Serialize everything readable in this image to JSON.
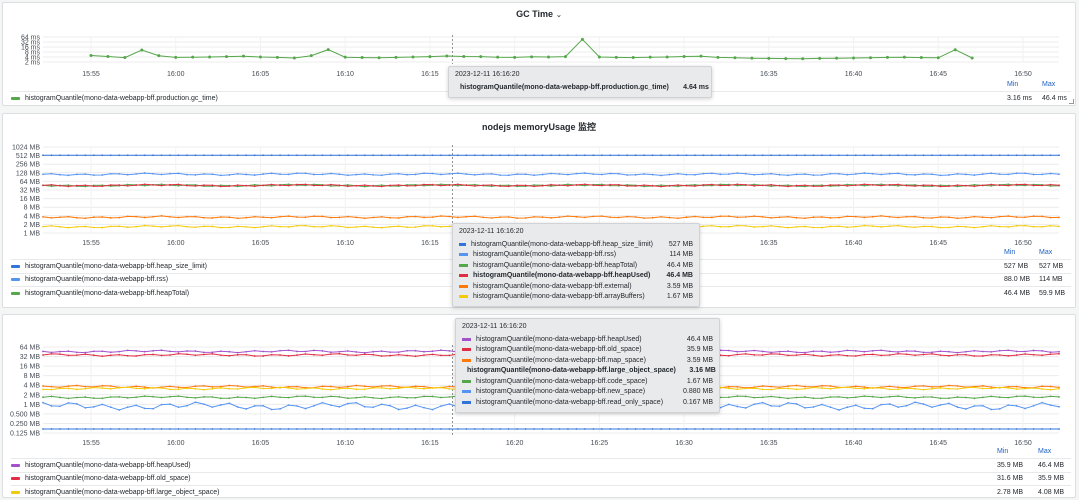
{
  "time_axis": [
    "15:55",
    "16:00",
    "16:05",
    "16:10",
    "16:15",
    "16:20",
    "16:25",
    "16:30",
    "16:35",
    "16:40",
    "16:45",
    "16:50"
  ],
  "legend_headers": {
    "min": "Min",
    "max": "Max"
  },
  "chart_data": [
    {
      "type": "line",
      "title": "GC Time",
      "yscale": "log",
      "y_ticks": [
        "64 ms",
        "32 ms",
        "16 ms",
        "8 ms",
        "4 ms",
        "2 ms"
      ],
      "x": [
        "15:53",
        "15:54",
        "15:55",
        "15:56",
        "15:57",
        "15:58",
        "15:59",
        "16:00",
        "16:01",
        "16:02",
        "16:03",
        "16:04",
        "16:05",
        "16:06",
        "16:07",
        "16:08",
        "16:09",
        "16:10",
        "16:11",
        "16:12",
        "16:13",
        "16:14",
        "16:15",
        "16:16",
        "16:17",
        "16:18",
        "16:19",
        "16:20",
        "16:21",
        "16:22",
        "16:23",
        "16:24",
        "16:25",
        "16:26",
        "16:27",
        "16:28",
        "16:29",
        "16:30",
        "16:31",
        "16:32",
        "16:33",
        "16:34",
        "16:35",
        "16:36",
        "16:37",
        "16:38",
        "16:39",
        "16:40",
        "16:41",
        "16:42",
        "16:43",
        "16:44",
        "16:45",
        "16:46",
        "16:47",
        "16:48",
        "16:49",
        "16:50",
        "16:51"
      ],
      "series": [
        {
          "name": "histogramQuantile(mono-data-webapp-bff.production.gc_time)",
          "color": "#56a64b",
          "min": "3.16 ms",
          "max": "46.4 ms",
          "values": [
            null,
            null,
            4.9,
            4.3,
            3.7,
            10.5,
            4.8,
            3.8,
            3.9,
            4.0,
            4.2,
            4.5,
            4.0,
            3.8,
            3.5,
            4.8,
            11.2,
            3.9,
            3.7,
            3.6,
            3.8,
            4.0,
            4.2,
            4.6,
            4.3,
            4.2,
            3.9,
            3.8,
            4.1,
            4.0,
            4.2,
            46.4,
            4.0,
            3.8,
            3.7,
            3.9,
            4.0,
            4.3,
            4.5,
            3.8,
            3.6,
            3.4,
            3.3,
            3.2,
            3.16,
            3.3,
            3.4,
            3.5,
            3.6,
            3.8,
            3.9,
            3.7,
            3.6,
            11.0,
            3.5,
            null,
            null,
            null,
            null
          ]
        }
      ]
    },
    {
      "type": "line",
      "title": "nodejs memoryUsage 监控",
      "yscale": "log",
      "y_ticks": [
        "1024 MB",
        "512 MB",
        "256 MB",
        "128 MB",
        "64 MB",
        "32 MB",
        "16 MB",
        "8 MB",
        "4 MB",
        "2 MB",
        "1 MB"
      ],
      "series": [
        {
          "name": "histogramQuantile(mono-data-webapp-bff.heap_size_limit)",
          "color": "#3274d9",
          "min": "527 MB",
          "max": "527 MB",
          "value": 527
        },
        {
          "name": "histogramQuantile(mono-data-webapp-bff.rss)",
          "color": "#5794f2",
          "min": "88.0 MB",
          "max": "114 MB",
          "value": 114
        },
        {
          "name": "histogramQuantile(mono-data-webapp-bff.heapTotal)",
          "color": "#56a64b",
          "min": "46.4 MB",
          "max": "59.9 MB",
          "value": 46.4
        },
        {
          "name": "histogramQuantile(mono-data-webapp-bff.heapUsed)",
          "color": "#e02f44",
          "value": 46.4
        },
        {
          "name": "histogramQuantile(mono-data-webapp-bff.external)",
          "color": "#ff780a",
          "value": 3.59
        },
        {
          "name": "histogramQuantile(mono-data-webapp-bff.arrayBuffers)",
          "color": "#f2cc0c",
          "value": 1.67
        }
      ]
    },
    {
      "type": "line",
      "title": "",
      "yscale": "log",
      "y_ticks": [
        "64 MB",
        "32 MB",
        "16 MB",
        "8 MB",
        "4 MB",
        "2 MB",
        "1 MB",
        "0.500 MB",
        "0.250 MB",
        "0.125 MB"
      ],
      "series": [
        {
          "name": "histogramQuantile(mono-data-webapp-bff.heapUsed)",
          "color": "#a352cc",
          "min": "35.9 MB",
          "max": "46.4 MB",
          "value": 46.4
        },
        {
          "name": "histogramQuantile(mono-data-webapp-bff.old_space)",
          "color": "#e02f44",
          "min": "31.6 MB",
          "max": "35.9 MB",
          "value": 35.9
        },
        {
          "name": "histogramQuantile(mono-data-webapp-bff.map_space)",
          "color": "#ff780a",
          "value": 3.59
        },
        {
          "name": "histogramQuantile(mono-data-webapp-bff.large_object_space)",
          "color": "#f2cc0c",
          "min": "2.78 MB",
          "max": "4.08 MB",
          "value": 3.16
        },
        {
          "name": "histogramQuantile(mono-data-webapp-bff.code_space)",
          "color": "#56a64b",
          "value": 1.67
        },
        {
          "name": "histogramQuantile(mono-data-webapp-bff.new_space)",
          "color": "#5794f2",
          "value": 0.88
        },
        {
          "name": "histogramQuantile(mono-data-webapp-bff.read_only_space)",
          "color": "#3274d9",
          "value": 0.167
        }
      ]
    }
  ],
  "panel1": {
    "title": "GC Time",
    "tooltip": {
      "time": "2023-12-11 16:16:20",
      "rows": [
        {
          "name": "histogramQuantile(mono-data-webapp-bff.production.gc_time)",
          "value": "4.64 ms",
          "color": "#56a64b"
        }
      ]
    },
    "legend": [
      {
        "name": "histogramQuantile(mono-data-webapp-bff.production.gc_time)",
        "min": "3.16 ms",
        "max": "46.4 ms",
        "color": "#56a64b"
      }
    ]
  },
  "panel2": {
    "title": "nodejs memoryUsage 监控",
    "tooltip": {
      "time": "2023-12-11 16:16:20",
      "rows": [
        {
          "name": "histogramQuantile(mono-data-webapp-bff.heap_size_limit)",
          "value": "527 MB",
          "color": "#3274d9"
        },
        {
          "name": "histogramQuantile(mono-data-webapp-bff.rss)",
          "value": "114 MB",
          "color": "#5794f2"
        },
        {
          "name": "histogramQuantile(mono-data-webapp-bff.heapTotal)",
          "value": "46.4 MB",
          "color": "#56a64b"
        },
        {
          "name": "histogramQuantile(mono-data-webapp-bff.heapUsed)",
          "value": "46.4 MB",
          "color": "#e02f44"
        },
        {
          "name": "histogramQuantile(mono-data-webapp-bff.external)",
          "value": "3.59 MB",
          "color": "#ff780a"
        },
        {
          "name": "histogramQuantile(mono-data-webapp-bff.arrayBuffers)",
          "value": "1.67 MB",
          "color": "#f2cc0c"
        }
      ]
    },
    "legend": [
      {
        "name": "histogramQuantile(mono-data-webapp-bff.heap_size_limit)",
        "min": "527 MB",
        "max": "527 MB",
        "color": "#3274d9"
      },
      {
        "name": "histogramQuantile(mono-data-webapp-bff.rss)",
        "min": "88.0 MB",
        "max": "114 MB",
        "color": "#5794f2"
      },
      {
        "name": "histogramQuantile(mono-data-webapp-bff.heapTotal)",
        "min": "46.4 MB",
        "max": "59.9 MB",
        "color": "#56a64b"
      }
    ]
  },
  "panel3": {
    "tooltip": {
      "time": "2023-12-11 16:16:20",
      "rows": [
        {
          "name": "histogramQuantile(mono-data-webapp-bff.heapUsed)",
          "value": "46.4 MB",
          "color": "#a352cc"
        },
        {
          "name": "histogramQuantile(mono-data-webapp-bff.old_space)",
          "value": "35.9 MB",
          "color": "#e02f44"
        },
        {
          "name": "histogramQuantile(mono-data-webapp-bff.map_space)",
          "value": "3.59 MB",
          "color": "#ff780a"
        },
        {
          "name": "histogramQuantile(mono-data-webapp-bff.large_object_space)",
          "value": "3.16 MB",
          "color": "#f2cc0c"
        },
        {
          "name": "histogramQuantile(mono-data-webapp-bff.code_space)",
          "value": "1.67 MB",
          "color": "#56a64b"
        },
        {
          "name": "histogramQuantile(mono-data-webapp-bff.new_space)",
          "value": "0.880 MB",
          "color": "#5794f2"
        },
        {
          "name": "histogramQuantile(mono-data-webapp-bff.read_only_space)",
          "value": "0.167 MB",
          "color": "#3274d9"
        }
      ]
    },
    "legend": [
      {
        "name": "histogramQuantile(mono-data-webapp-bff.heapUsed)",
        "min": "35.9 MB",
        "max": "46.4 MB",
        "color": "#a352cc"
      },
      {
        "name": "histogramQuantile(mono-data-webapp-bff.old_space)",
        "min": "31.6 MB",
        "max": "35.9 MB",
        "color": "#e02f44"
      },
      {
        "name": "histogramQuantile(mono-data-webapp-bff.large_object_space)",
        "min": "2.78 MB",
        "max": "4.08 MB",
        "color": "#f2cc0c"
      }
    ]
  }
}
